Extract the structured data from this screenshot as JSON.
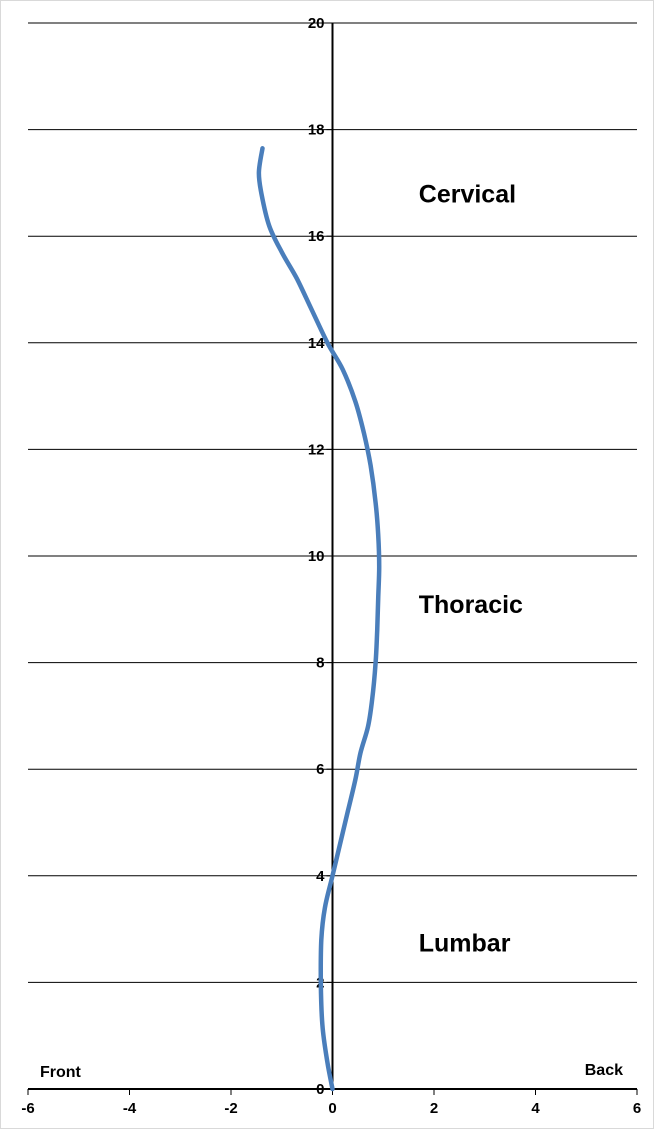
{
  "chart_data": {
    "type": "line",
    "title": "",
    "xlabel": "",
    "ylabel": "",
    "xlim": [
      -6,
      6
    ],
    "ylim": [
      0,
      20
    ],
    "x_ticks": [
      -6,
      -4,
      -2,
      0,
      2,
      4,
      6
    ],
    "y_ticks": [
      0,
      2,
      4,
      6,
      8,
      10,
      12,
      14,
      16,
      18,
      20
    ],
    "horizontal_grid": true,
    "vertical_grid": false,
    "series": [
      {
        "name": "",
        "color": "#4a7ebb",
        "points": [
          [
            0.0,
            0.0
          ],
          [
            -0.1,
            0.5
          ],
          [
            -0.2,
            1.2
          ],
          [
            -0.23,
            2.0
          ],
          [
            -0.22,
            2.8
          ],
          [
            -0.15,
            3.4
          ],
          [
            0.0,
            4.0
          ],
          [
            0.15,
            4.6
          ],
          [
            0.3,
            5.2
          ],
          [
            0.45,
            5.8
          ],
          [
            0.55,
            6.3
          ],
          [
            0.7,
            6.8
          ],
          [
            0.78,
            7.3
          ],
          [
            0.85,
            8.0
          ],
          [
            0.88,
            8.6
          ],
          [
            0.9,
            9.2
          ],
          [
            0.92,
            9.8
          ],
          [
            0.9,
            10.4
          ],
          [
            0.85,
            11.0
          ],
          [
            0.75,
            11.7
          ],
          [
            0.62,
            12.3
          ],
          [
            0.45,
            12.9
          ],
          [
            0.2,
            13.5
          ],
          [
            -0.1,
            14.0
          ],
          [
            -0.4,
            14.6
          ],
          [
            -0.7,
            15.2
          ],
          [
            -1.0,
            15.7
          ],
          [
            -1.25,
            16.2
          ],
          [
            -1.4,
            16.8
          ],
          [
            -1.45,
            17.2
          ],
          [
            -1.38,
            17.65
          ]
        ]
      }
    ],
    "annotations": [
      {
        "text": "Cervical",
        "x": 1.7,
        "y": 16.8
      },
      {
        "text": "Thoracic",
        "x": 1.7,
        "y": 9.1
      },
      {
        "text": "Lumbar",
        "x": 1.7,
        "y": 2.75
      }
    ],
    "side_labels": {
      "left": "Front",
      "right": "Back"
    }
  }
}
